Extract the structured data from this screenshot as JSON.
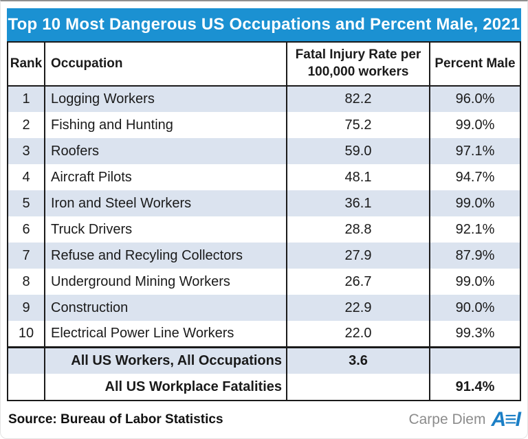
{
  "colors": {
    "title_bg": "#1b91d2",
    "title_text": "#ffffff",
    "row_stripe": "#dbe3ef",
    "table_border": "#1a1a1a",
    "brand_grey": "#8c8c8c",
    "aei_blue": "#1b7fc6"
  },
  "header": {
    "rank": "Rank",
    "occupation": "Occupation",
    "rate_line1": "Fatal Injury Rate per",
    "rate_line2": "100,000 workers",
    "percent_male": "Percent Male"
  },
  "footer": {
    "source": "Source: Bureau of Labor Statistics",
    "brand": "Carpe Diem",
    "logo_name": "AEI",
    "logo_glyph": "A≡I"
  },
  "chart_data": {
    "type": "table",
    "title": "Top 10 Most Dangerous US Occupations and Percent Male, 2021",
    "columns": [
      "Rank",
      "Occupation",
      "Fatal Injury Rate per 100,000 workers",
      "Percent Male"
    ],
    "rows": [
      {
        "rank": "1",
        "occupation": "Logging Workers",
        "rate": "82.2",
        "percent_male": "96.0%"
      },
      {
        "rank": "2",
        "occupation": "Fishing and Hunting",
        "rate": "75.2",
        "percent_male": "99.0%"
      },
      {
        "rank": "3",
        "occupation": "Roofers",
        "rate": "59.0",
        "percent_male": "97.1%"
      },
      {
        "rank": "4",
        "occupation": "Aircraft Pilots",
        "rate": "48.1",
        "percent_male": "94.7%"
      },
      {
        "rank": "5",
        "occupation": "Iron and Steel Workers",
        "rate": "36.1",
        "percent_male": "99.0%"
      },
      {
        "rank": "6",
        "occupation": "Truck Drivers",
        "rate": "28.8",
        "percent_male": "92.1%"
      },
      {
        "rank": "7",
        "occupation": "Refuse and Recyling Collectors",
        "rate": "27.9",
        "percent_male": "87.9%"
      },
      {
        "rank": "8",
        "occupation": "Underground Mining Workers",
        "rate": "26.7",
        "percent_male": "99.0%"
      },
      {
        "rank": "9",
        "occupation": "Construction",
        "rate": "22.9",
        "percent_male": "90.0%"
      },
      {
        "rank": "10",
        "occupation": "Electrical Power Line Workers",
        "rate": "22.0",
        "percent_male": "99.3%"
      }
    ],
    "summary_rows": [
      {
        "rank": "",
        "occupation": "All US Workers, All Occupations",
        "rate": "3.6",
        "percent_male": ""
      },
      {
        "rank": "",
        "occupation": "All US Workplace Fatalities",
        "rate": "",
        "percent_male": "91.4%"
      }
    ],
    "source": "Bureau of Labor Statistics"
  }
}
